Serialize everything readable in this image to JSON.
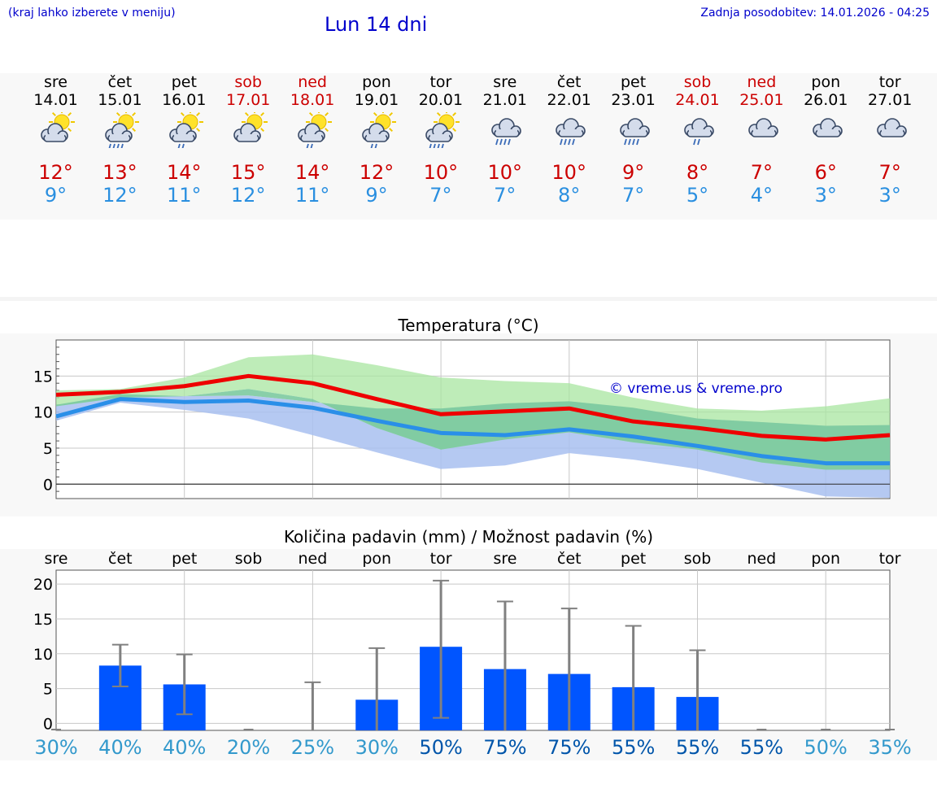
{
  "header": {
    "hint": "(kraj lahko izberete v meniju)",
    "title": "Lun 14 dni",
    "updated": "Zadnja posodobitev: 14.01.2026 - 04:25"
  },
  "days": [
    {
      "name": "sre",
      "date": "14.01",
      "hi": "12°",
      "lo": "9°",
      "weekend": false,
      "icon": "sun-cloud-icon"
    },
    {
      "name": "čet",
      "date": "15.01",
      "hi": "13°",
      "lo": "12°",
      "weekend": false,
      "icon": "sun-cloud-rain-icon"
    },
    {
      "name": "pet",
      "date": "16.01",
      "hi": "14°",
      "lo": "11°",
      "weekend": false,
      "icon": "sun-cloud-light-rain-icon"
    },
    {
      "name": "sob",
      "date": "17.01",
      "hi": "15°",
      "lo": "12°",
      "weekend": true,
      "icon": "sun-cloud-icon"
    },
    {
      "name": "ned",
      "date": "18.01",
      "hi": "14°",
      "lo": "11°",
      "weekend": true,
      "icon": "sun-cloud-light-rain-icon"
    },
    {
      "name": "pon",
      "date": "19.01",
      "hi": "12°",
      "lo": "9°",
      "weekend": false,
      "icon": "sun-cloud-light-rain-icon"
    },
    {
      "name": "tor",
      "date": "20.01",
      "hi": "10°",
      "lo": "7°",
      "weekend": false,
      "icon": "sun-cloud-rain-icon"
    },
    {
      "name": "sre",
      "date": "21.01",
      "hi": "10°",
      "lo": "7°",
      "weekend": false,
      "icon": "cloud-rain-icon"
    },
    {
      "name": "čet",
      "date": "22.01",
      "hi": "10°",
      "lo": "8°",
      "weekend": false,
      "icon": "cloud-rain-icon"
    },
    {
      "name": "pet",
      "date": "23.01",
      "hi": "9°",
      "lo": "7°",
      "weekend": false,
      "icon": "cloud-rain-icon"
    },
    {
      "name": "sob",
      "date": "24.01",
      "hi": "8°",
      "lo": "5°",
      "weekend": true,
      "icon": "cloud-light-rain-icon"
    },
    {
      "name": "ned",
      "date": "25.01",
      "hi": "7°",
      "lo": "4°",
      "weekend": true,
      "icon": "cloud-icon"
    },
    {
      "name": "pon",
      "date": "26.01",
      "hi": "6°",
      "lo": "3°",
      "weekend": false,
      "icon": "cloud-icon"
    },
    {
      "name": "tor",
      "date": "27.01",
      "hi": "7°",
      "lo": "3°",
      "weekend": false,
      "icon": "cloud-icon"
    }
  ],
  "colors": {
    "max_line": "#ee0000",
    "min_line": "#2a8fe8",
    "max_band": "#a8e6a0",
    "min_band": "#a8c0f0",
    "overlap_band": "#7ccaa0",
    "bar": "#0055ff",
    "error_bar": "#808080",
    "pct_dark": "#0055aa",
    "pct_light": "#3399cc"
  },
  "chart_data": [
    {
      "type": "line",
      "title": "Temperatura (°C)",
      "watermark": "© vreme.us & vreme.pro",
      "ylim": [
        -2,
        20
      ],
      "yticks": [
        0,
        5,
        10,
        15
      ],
      "ytick_labels": [
        "0",
        "5",
        "10",
        "15"
      ],
      "series": [
        {
          "name": "max",
          "values": [
            12.4,
            12.8,
            13.6,
            15.0,
            14.0,
            11.8,
            9.7,
            10.1,
            10.5,
            8.7,
            7.8,
            6.7,
            6.2,
            6.8
          ]
        },
        {
          "name": "min",
          "values": [
            9.4,
            11.8,
            11.4,
            11.6,
            10.6,
            8.8,
            7.1,
            6.8,
            7.6,
            6.6,
            5.3,
            3.9,
            2.9,
            2.9
          ]
        }
      ],
      "bands": [
        {
          "name": "max_range",
          "upper": [
            13.0,
            13.2,
            14.8,
            17.6,
            18.0,
            16.5,
            14.8,
            14.3,
            14.0,
            12.0,
            10.5,
            10.2,
            10.8,
            11.9
          ],
          "lower": [
            10.8,
            12.0,
            12.2,
            13.2,
            11.8,
            7.8,
            4.8,
            6.2,
            7.2,
            5.8,
            4.8,
            3.0,
            2.0,
            2.0
          ]
        },
        {
          "name": "min_range",
          "upper": [
            11.0,
            12.5,
            12.2,
            12.3,
            11.4,
            10.5,
            10.5,
            11.2,
            11.5,
            10.6,
            9.1,
            8.6,
            8.1,
            8.2
          ],
          "lower": [
            8.8,
            11.3,
            10.3,
            9.1,
            6.8,
            4.4,
            2.1,
            2.6,
            4.3,
            3.4,
            2.1,
            0.2,
            -1.7,
            -1.9
          ]
        }
      ]
    },
    {
      "type": "bar",
      "title": "Količina padavin (mm) / Možnost padavin (%)",
      "categories": [
        "sre",
        "čet",
        "pet",
        "sob",
        "ned",
        "pon",
        "tor",
        "sre",
        "čet",
        "pet",
        "sob",
        "ned",
        "pon",
        "tor"
      ],
      "ylim": [
        -1,
        22
      ],
      "yticks": [
        0,
        5,
        10,
        15,
        20
      ],
      "ytick_labels": [
        "0",
        "5",
        "10",
        "15",
        "20"
      ],
      "values": [
        0,
        8.3,
        5.6,
        0,
        0,
        3.4,
        11,
        7.8,
        7.1,
        5.2,
        3.8,
        0,
        0,
        0
      ],
      "err_low": [
        0,
        5.3,
        1.3,
        0,
        0,
        0,
        0.8,
        0,
        0,
        0,
        0,
        0,
        0,
        0
      ],
      "err_high": [
        0,
        11.3,
        9.9,
        0,
        5.9,
        10.8,
        20.5,
        17.5,
        16.5,
        14.0,
        10.5,
        0,
        0,
        0
      ],
      "probability": [
        "30%",
        "40%",
        "40%",
        "20%",
        "25%",
        "30%",
        "50%",
        "75%",
        "75%",
        "55%",
        "55%",
        "55%",
        "50%",
        "35%"
      ],
      "probability_dark": [
        false,
        false,
        false,
        false,
        false,
        false,
        true,
        true,
        true,
        true,
        true,
        true,
        false,
        false
      ]
    }
  ]
}
